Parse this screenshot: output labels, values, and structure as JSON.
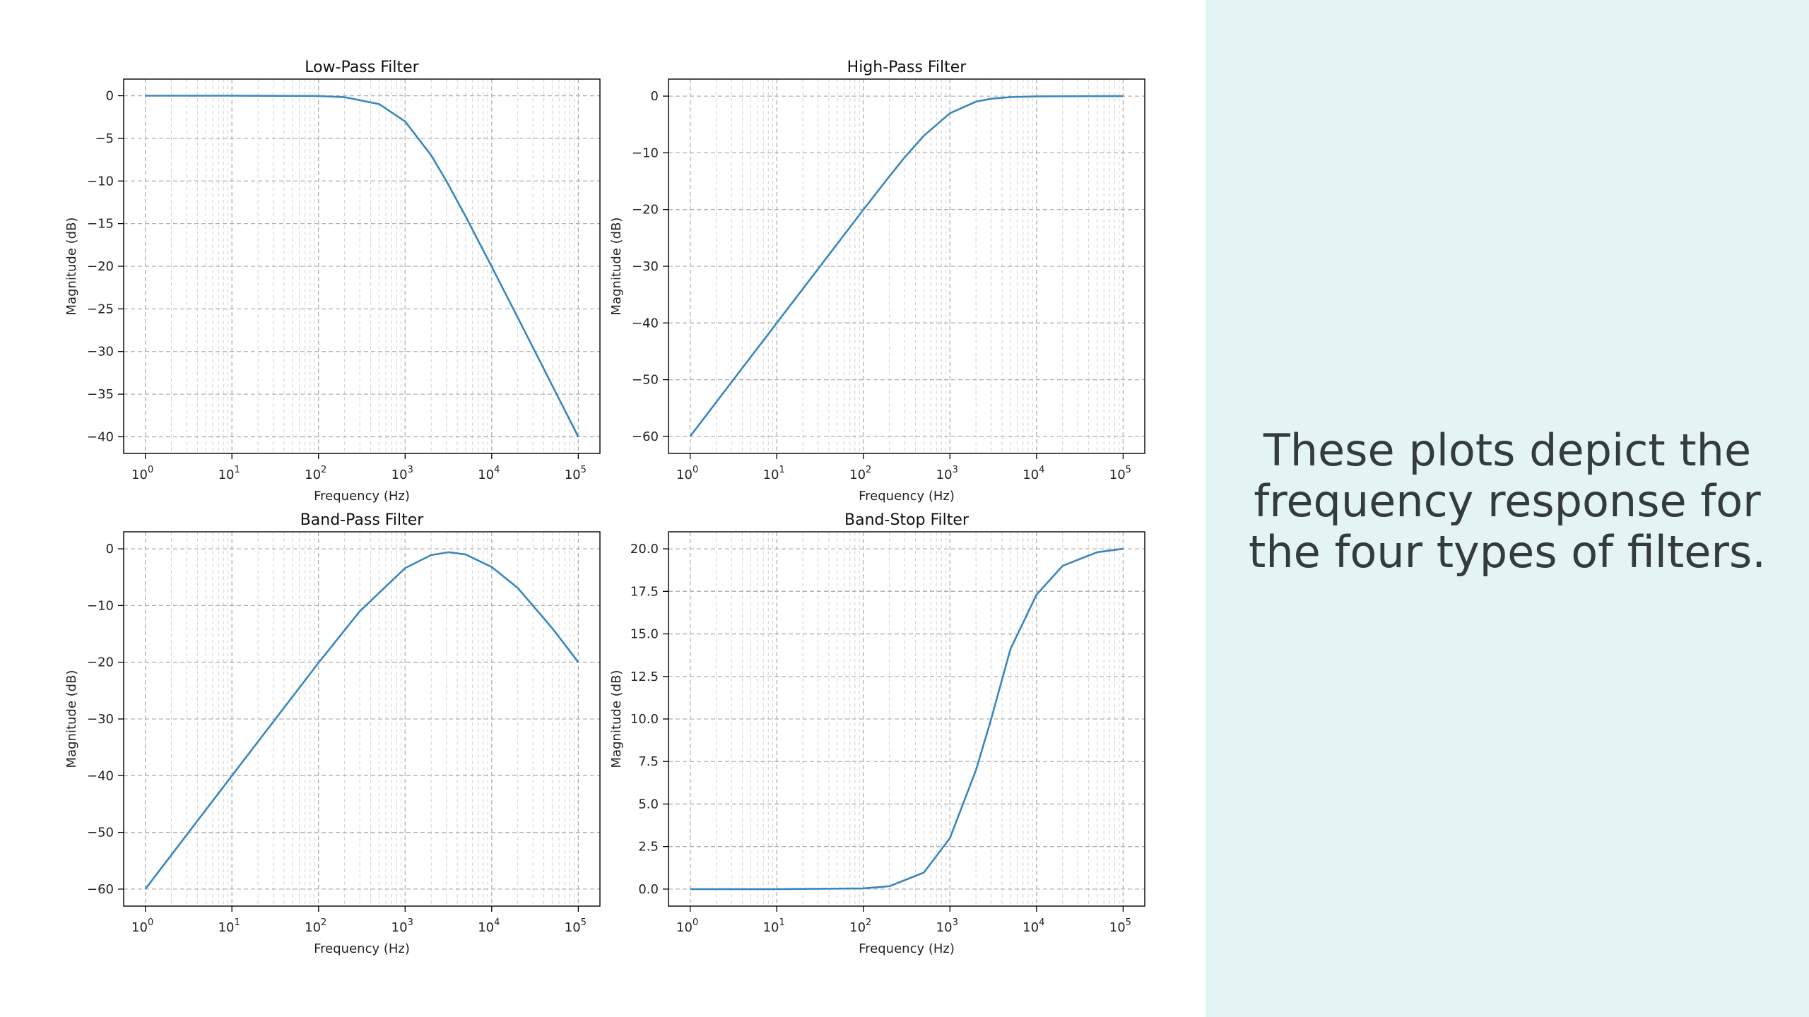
{
  "panel": {
    "caption_lines": [
      "These plots depict the",
      "frequency response for",
      "the four types of filters."
    ],
    "background_color": "#e4f4f4",
    "text_color": "#333b40"
  },
  "colors": {
    "line": "#3a87bd",
    "grid": "#b0b0b0",
    "axes": "#000000"
  },
  "chart_data": [
    {
      "type": "line",
      "title": "Low-Pass Filter",
      "xlabel": "Frequency (Hz)",
      "ylabel": "Magnitude (dB)",
      "xscale": "log",
      "xlim": [
        1,
        100000
      ],
      "ylim": [
        -41.95,
        1.95
      ],
      "xticks": [
        1,
        10,
        100,
        1000,
        10000,
        100000
      ],
      "xtick_labels": [
        {
          "base": "10",
          "exp": "0"
        },
        {
          "base": "10",
          "exp": "1"
        },
        {
          "base": "10",
          "exp": "2"
        },
        {
          "base": "10",
          "exp": "3"
        },
        {
          "base": "10",
          "exp": "4"
        },
        {
          "base": "10",
          "exp": "5"
        }
      ],
      "yticks": [
        0,
        -5,
        -10,
        -15,
        -20,
        -25,
        -30,
        -35,
        -40
      ],
      "ytick_labels": [
        "0",
        "−5",
        "−10",
        "−15",
        "−20",
        "−25",
        "−30",
        "−35",
        "−40"
      ],
      "grid": true,
      "series": [
        {
          "x": [
            1,
            10,
            100,
            200,
            500,
            1000,
            2000,
            3000,
            5000,
            10000,
            20000,
            50000,
            100000
          ],
          "y": [
            0,
            0,
            -0.04,
            -0.17,
            -0.97,
            -3.01,
            -6.99,
            -10.0,
            -14.15,
            -20.04,
            -26.02,
            -33.98,
            -40.0
          ]
        }
      ]
    },
    {
      "type": "line",
      "title": "High-Pass Filter",
      "xlabel": "Frequency (Hz)",
      "ylabel": "Magnitude (dB)",
      "xscale": "log",
      "xlim": [
        1,
        100000
      ],
      "ylim": [
        -63,
        3
      ],
      "xticks": [
        1,
        10,
        100,
        1000,
        10000,
        100000
      ],
      "xtick_labels": [
        {
          "base": "10",
          "exp": "0"
        },
        {
          "base": "10",
          "exp": "1"
        },
        {
          "base": "10",
          "exp": "2"
        },
        {
          "base": "10",
          "exp": "3"
        },
        {
          "base": "10",
          "exp": "4"
        },
        {
          "base": "10",
          "exp": "5"
        }
      ],
      "yticks": [
        0,
        -10,
        -20,
        -30,
        -40,
        -50,
        -60
      ],
      "ytick_labels": [
        "0",
        "−10",
        "−20",
        "−30",
        "−40",
        "−50",
        "−60"
      ],
      "grid": true,
      "series": [
        {
          "x": [
            1,
            10,
            100,
            200,
            300,
            500,
            1000,
            2000,
            3000,
            5000,
            10000,
            100000
          ],
          "y": [
            -60,
            -40,
            -20.04,
            -14.15,
            -10.8,
            -6.99,
            -3.01,
            -0.97,
            -0.46,
            -0.17,
            -0.04,
            0
          ]
        }
      ]
    },
    {
      "type": "line",
      "title": "Band-Pass Filter",
      "xlabel": "Frequency (Hz)",
      "ylabel": "Magnitude (dB)",
      "xscale": "log",
      "xlim": [
        1,
        100000
      ],
      "ylim": [
        -63,
        3
      ],
      "xticks": [
        1,
        10,
        100,
        1000,
        10000,
        100000
      ],
      "xtick_labels": [
        {
          "base": "10",
          "exp": "0"
        },
        {
          "base": "10",
          "exp": "1"
        },
        {
          "base": "10",
          "exp": "2"
        },
        {
          "base": "10",
          "exp": "3"
        },
        {
          "base": "10",
          "exp": "4"
        },
        {
          "base": "10",
          "exp": "5"
        }
      ],
      "yticks": [
        0,
        -10,
        -20,
        -30,
        -40,
        -50,
        -60
      ],
      "ytick_labels": [
        "0",
        "−10",
        "−20",
        "−30",
        "−40",
        "−50",
        "−60"
      ],
      "grid": true,
      "series": [
        {
          "x": [
            1,
            10,
            100,
            300,
            1000,
            2000,
            3200,
            5000,
            10000,
            20000,
            50000,
            100000
          ],
          "y": [
            -60,
            -40,
            -20.1,
            -11.0,
            -3.4,
            -1.1,
            -0.6,
            -1.0,
            -3.2,
            -6.9,
            -14.0,
            -20.0
          ]
        }
      ]
    },
    {
      "type": "line",
      "title": "Band-Stop Filter",
      "xlabel": "Frequency (Hz)",
      "ylabel": "Magnitude (dB)",
      "xscale": "log",
      "xlim": [
        1,
        100000
      ],
      "ylim": [
        -1,
        21
      ],
      "xticks": [
        1,
        10,
        100,
        1000,
        10000,
        100000
      ],
      "xtick_labels": [
        {
          "base": "10",
          "exp": "0"
        },
        {
          "base": "10",
          "exp": "1"
        },
        {
          "base": "10",
          "exp": "2"
        },
        {
          "base": "10",
          "exp": "3"
        },
        {
          "base": "10",
          "exp": "4"
        },
        {
          "base": "10",
          "exp": "5"
        }
      ],
      "yticks": [
        0,
        2.5,
        5,
        7.5,
        10,
        12.5,
        15,
        17.5,
        20
      ],
      "ytick_labels": [
        "0.0",
        "2.5",
        "5.0",
        "7.5",
        "10.0",
        "12.5",
        "15.0",
        "17.5",
        "20.0"
      ],
      "grid": true,
      "series": [
        {
          "x": [
            1,
            10,
            100,
            200,
            500,
            1000,
            2000,
            3000,
            5000,
            10000,
            20000,
            50000,
            100000
          ],
          "y": [
            0,
            0,
            0.04,
            0.17,
            0.97,
            3.0,
            7.0,
            10.0,
            14.1,
            17.3,
            19.0,
            19.8,
            20.0
          ]
        }
      ]
    }
  ]
}
